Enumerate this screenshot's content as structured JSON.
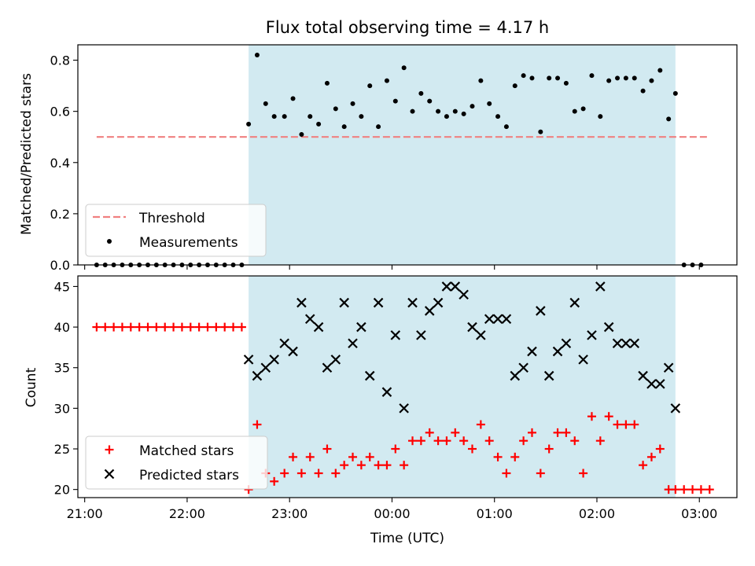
{
  "figure": {
    "title": "Flux total observing time = 4.17 h",
    "xlabel": "Time (UTC)",
    "shade_color": "#add8e6",
    "threshold_color": "#f08080",
    "measure_color": "#000000",
    "matched_color": "#ff0000",
    "predicted_color": "#000000"
  },
  "chart_data": [
    {
      "type": "scatter",
      "ylabel": "Matched/Predicted stars",
      "ylim": [
        0,
        0.86
      ],
      "yticks": [
        0.0,
        0.2,
        0.4,
        0.6,
        0.8
      ],
      "ytick_labels": [
        "0.0",
        "0.2",
        "0.4",
        "0.6",
        "0.8"
      ],
      "grid": false,
      "legend": {
        "placement": "lower-left",
        "entries": [
          "Threshold",
          "Measurements"
        ]
      },
      "shaded_interval": [
        "22:36",
        "02:46"
      ],
      "threshold": {
        "name": "Threshold",
        "value": 0.5,
        "x_start": "21:07",
        "x_end": "03:05"
      },
      "series": [
        {
          "name": "Measurements",
          "x": [
            "21:07",
            "21:12",
            "21:17",
            "21:22",
            "21:27",
            "21:32",
            "21:37",
            "21:42",
            "21:47",
            "21:52",
            "21:57",
            "22:02",
            "22:07",
            "22:12",
            "22:17",
            "22:22",
            "22:27",
            "22:32",
            "22:36",
            "22:41",
            "22:46",
            "22:51",
            "22:57",
            "23:02",
            "23:07",
            "23:12",
            "23:17",
            "23:22",
            "23:27",
            "23:32",
            "23:37",
            "23:42",
            "23:47",
            "23:52",
            "23:57",
            "00:02",
            "00:07",
            "00:12",
            "00:17",
            "00:22",
            "00:27",
            "00:32",
            "00:37",
            "00:42",
            "00:47",
            "00:52",
            "00:57",
            "01:02",
            "01:07",
            "01:12",
            "01:17",
            "01:22",
            "01:27",
            "01:32",
            "01:37",
            "01:42",
            "01:47",
            "01:52",
            "01:57",
            "02:02",
            "02:07",
            "02:12",
            "02:17",
            "02:22",
            "02:27",
            "02:32",
            "02:37",
            "02:42",
            "02:46",
            "02:51",
            "02:56",
            "03:01"
          ],
          "y": [
            0,
            0,
            0,
            0,
            0,
            0,
            0,
            0,
            0,
            0,
            0,
            0,
            0,
            0,
            0,
            0,
            0,
            0,
            0.55,
            0.82,
            0.63,
            0.58,
            0.58,
            0.65,
            0.51,
            0.58,
            0.55,
            0.71,
            0.61,
            0.54,
            0.63,
            0.58,
            0.7,
            0.54,
            0.72,
            0.64,
            0.77,
            0.6,
            0.67,
            0.64,
            0.6,
            0.58,
            0.6,
            0.59,
            0.62,
            0.72,
            0.63,
            0.58,
            0.54,
            0.7,
            0.74,
            0.73,
            0.52,
            0.73,
            0.73,
            0.71,
            0.6,
            0.61,
            0.74,
            0.58,
            0.72,
            0.73,
            0.73,
            0.73,
            0.68,
            0.72,
            0.76,
            0.57,
            0.67,
            0,
            0,
            0
          ]
        }
      ]
    },
    {
      "type": "scatter",
      "ylabel": "Count",
      "xlabel": "Time (UTC)",
      "ylim": [
        19,
        46.3
      ],
      "yticks": [
        20,
        25,
        30,
        35,
        40,
        45
      ],
      "ytick_labels": [
        "20",
        "25",
        "30",
        "35",
        "40",
        "45"
      ],
      "xlim": [
        "20:56",
        "03:22"
      ],
      "xtick_values": [
        "21:00",
        "22:00",
        "23:00",
        "00:00",
        "01:00",
        "02:00",
        "03:00"
      ],
      "xtick_labels": [
        "21:00",
        "22:00",
        "23:00",
        "00:00",
        "01:00",
        "02:00",
        "03:00"
      ],
      "grid": false,
      "legend": {
        "placement": "lower-left",
        "entries": [
          "Matched stars",
          "Predicted stars"
        ]
      },
      "series": [
        {
          "name": "Matched stars",
          "marker": "+",
          "x": [
            "21:07",
            "21:12",
            "21:17",
            "21:22",
            "21:27",
            "21:32",
            "21:37",
            "21:42",
            "21:47",
            "21:52",
            "21:57",
            "22:02",
            "22:07",
            "22:12",
            "22:17",
            "22:22",
            "22:27",
            "22:32",
            "22:36",
            "22:41",
            "22:46",
            "22:51",
            "22:57",
            "23:02",
            "23:07",
            "23:12",
            "23:17",
            "23:22",
            "23:27",
            "23:32",
            "23:37",
            "23:42",
            "23:47",
            "23:52",
            "23:57",
            "00:02",
            "00:07",
            "00:12",
            "00:17",
            "00:22",
            "00:27",
            "00:32",
            "00:37",
            "00:42",
            "00:47",
            "00:52",
            "00:57",
            "01:02",
            "01:07",
            "01:12",
            "01:17",
            "01:22",
            "01:27",
            "01:32",
            "01:37",
            "01:42",
            "01:47",
            "01:52",
            "01:57",
            "02:02",
            "02:07",
            "02:12",
            "02:17",
            "02:22",
            "02:27",
            "02:32",
            "02:37",
            "02:42",
            "02:46",
            "02:51",
            "02:56",
            "03:01",
            "03:06"
          ],
          "y": [
            40,
            40,
            40,
            40,
            40,
            40,
            40,
            40,
            40,
            40,
            40,
            40,
            40,
            40,
            40,
            40,
            40,
            40,
            20,
            28,
            22,
            21,
            22,
            24,
            22,
            24,
            22,
            25,
            22,
            23,
            24,
            23,
            24,
            23,
            23,
            25,
            23,
            26,
            26,
            27,
            26,
            26,
            27,
            26,
            25,
            28,
            26,
            24,
            22,
            24,
            26,
            27,
            22,
            25,
            27,
            27,
            26,
            22,
            29,
            26,
            29,
            28,
            28,
            28,
            23,
            24,
            25,
            20,
            20,
            20,
            20,
            20,
            20
          ]
        },
        {
          "name": "Predicted stars",
          "marker": "x",
          "x": [
            "22:36",
            "22:41",
            "22:46",
            "22:51",
            "22:57",
            "23:02",
            "23:07",
            "23:12",
            "23:17",
            "23:22",
            "23:27",
            "23:32",
            "23:37",
            "23:42",
            "23:47",
            "23:52",
            "23:57",
            "00:02",
            "00:07",
            "00:12",
            "00:17",
            "00:22",
            "00:27",
            "00:32",
            "00:37",
            "00:42",
            "00:47",
            "00:52",
            "00:57",
            "01:02",
            "01:07",
            "01:12",
            "01:17",
            "01:22",
            "01:27",
            "01:32",
            "01:37",
            "01:42",
            "01:47",
            "01:52",
            "01:57",
            "02:02",
            "02:07",
            "02:12",
            "02:17",
            "02:22",
            "02:27",
            "02:32",
            "02:37",
            "02:42",
            "02:46"
          ],
          "y": [
            36,
            34,
            35,
            36,
            38,
            37,
            43,
            41,
            40,
            35,
            36,
            43,
            38,
            40,
            34,
            43,
            32,
            39,
            30,
            43,
            39,
            42,
            43,
            45,
            45,
            44,
            40,
            39,
            41,
            41,
            41,
            34,
            35,
            37,
            42,
            34,
            37,
            38,
            43,
            36,
            39,
            45,
            40,
            38,
            38,
            38,
            34,
            33,
            33,
            35,
            30
          ]
        }
      ]
    }
  ]
}
